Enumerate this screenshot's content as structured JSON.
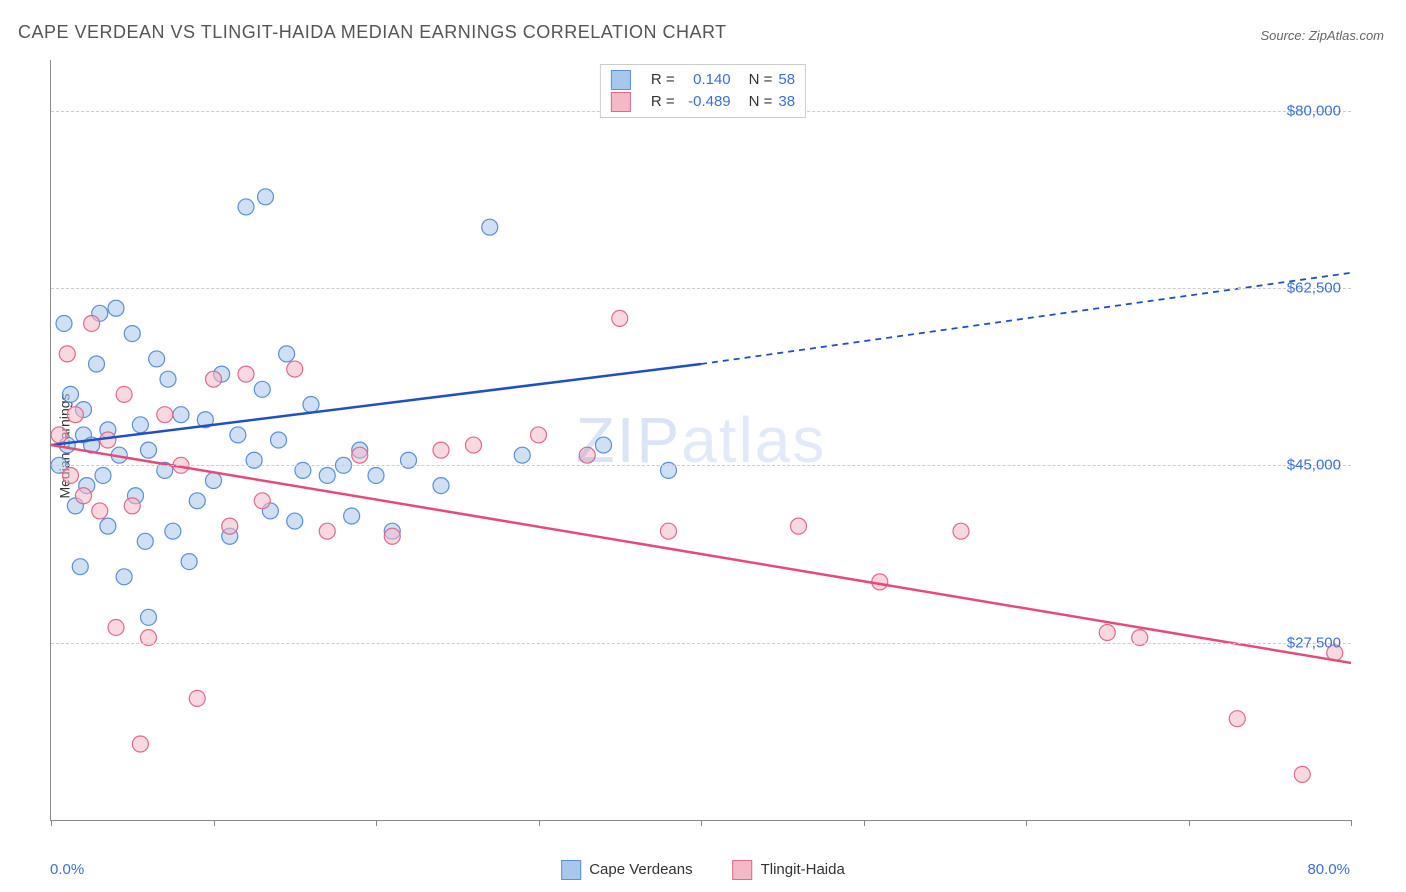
{
  "title": "CAPE VERDEAN VS TLINGIT-HAIDA MEDIAN EARNINGS CORRELATION CHART",
  "source": "Source: ZipAtlas.com",
  "ylabel": "Median Earnings",
  "xmin_label": "0.0%",
  "xmax_label": "80.0%",
  "watermark": "ZIPatlas",
  "chart": {
    "type": "scatter",
    "xlim": [
      0,
      80
    ],
    "ylim": [
      10000,
      85000
    ],
    "yticks": [
      27500,
      45000,
      62500,
      80000
    ],
    "ytick_labels": [
      "$27,500",
      "$45,000",
      "$62,500",
      "$80,000"
    ],
    "xticks": [
      0,
      10,
      20,
      30,
      40,
      50,
      60,
      70,
      80
    ],
    "grid_color": "#cccccc",
    "axis_color": "#888888",
    "background_color": "#ffffff",
    "marker_radius": 8,
    "marker_stroke_width": 1.2,
    "trendline_width": 2.5,
    "series": [
      {
        "name": "Cape Verdeans",
        "fill_color": "#a8c7ec",
        "stroke_color": "#5b8fd6",
        "fill_opacity": 0.55,
        "r_value": "0.140",
        "n_value": "58",
        "trendline": {
          "color": "#1f4fc4",
          "solid_range": [
            0,
            40
          ],
          "dashed_range": [
            40,
            80
          ],
          "y_start": 47000,
          "y_end_solid": 55000,
          "y_end_dashed": 64000
        },
        "points": [
          [
            0.5,
            45000
          ],
          [
            0.8,
            59000
          ],
          [
            1.0,
            47000
          ],
          [
            1.2,
            52000
          ],
          [
            1.5,
            41000
          ],
          [
            1.8,
            35000
          ],
          [
            2.0,
            50500
          ],
          [
            2.0,
            48000
          ],
          [
            2.2,
            43000
          ],
          [
            2.5,
            47000
          ],
          [
            2.8,
            55000
          ],
          [
            3.0,
            60000
          ],
          [
            3.2,
            44000
          ],
          [
            3.5,
            39000
          ],
          [
            3.5,
            48500
          ],
          [
            4.0,
            60500
          ],
          [
            4.2,
            46000
          ],
          [
            4.5,
            34000
          ],
          [
            5.0,
            58000
          ],
          [
            5.2,
            42000
          ],
          [
            5.5,
            49000
          ],
          [
            5.8,
            37500
          ],
          [
            6.0,
            30000
          ],
          [
            6.0,
            46500
          ],
          [
            6.5,
            55500
          ],
          [
            7.0,
            44500
          ],
          [
            7.2,
            53500
          ],
          [
            7.5,
            38500
          ],
          [
            8.0,
            50000
          ],
          [
            8.5,
            35500
          ],
          [
            9.0,
            41500
          ],
          [
            9.5,
            49500
          ],
          [
            10.0,
            43500
          ],
          [
            10.5,
            54000
          ],
          [
            11.0,
            38000
          ],
          [
            11.5,
            48000
          ],
          [
            12.0,
            70500
          ],
          [
            12.5,
            45500
          ],
          [
            13.0,
            52500
          ],
          [
            13.2,
            71500
          ],
          [
            13.5,
            40500
          ],
          [
            14.0,
            47500
          ],
          [
            14.5,
            56000
          ],
          [
            15.0,
            39500
          ],
          [
            15.5,
            44500
          ],
          [
            16.0,
            51000
          ],
          [
            17.0,
            44000
          ],
          [
            18.0,
            45000
          ],
          [
            18.5,
            40000
          ],
          [
            19.0,
            46500
          ],
          [
            20.0,
            44000
          ],
          [
            21.0,
            38500
          ],
          [
            22.0,
            45500
          ],
          [
            24.0,
            43000
          ],
          [
            27.0,
            68500
          ],
          [
            29.0,
            46000
          ],
          [
            34.0,
            47000
          ],
          [
            38.0,
            44500
          ]
        ]
      },
      {
        "name": "Tlingit-Haida",
        "fill_color": "#f4b8c6",
        "stroke_color": "#e06a8a",
        "fill_opacity": 0.55,
        "r_value": "-0.489",
        "n_value": "38",
        "trendline": {
          "color": "#e54b7a",
          "solid_range": [
            0,
            80
          ],
          "y_start": 47000,
          "y_end_solid": 25500
        },
        "points": [
          [
            0.5,
            48000
          ],
          [
            1.0,
            56000
          ],
          [
            1.2,
            44000
          ],
          [
            1.5,
            50000
          ],
          [
            2.0,
            42000
          ],
          [
            2.5,
            59000
          ],
          [
            3.0,
            40500
          ],
          [
            3.5,
            47500
          ],
          [
            4.0,
            29000
          ],
          [
            4.5,
            52000
          ],
          [
            5.0,
            41000
          ],
          [
            5.5,
            17500
          ],
          [
            6.0,
            28000
          ],
          [
            7.0,
            50000
          ],
          [
            8.0,
            45000
          ],
          [
            9.0,
            22000
          ],
          [
            10.0,
            53500
          ],
          [
            11.0,
            39000
          ],
          [
            12.0,
            54000
          ],
          [
            13.0,
            41500
          ],
          [
            15.0,
            54500
          ],
          [
            17.0,
            38500
          ],
          [
            19.0,
            46000
          ],
          [
            21.0,
            38000
          ],
          [
            24.0,
            46500
          ],
          [
            26.0,
            47000
          ],
          [
            30.0,
            48000
          ],
          [
            33.0,
            46000
          ],
          [
            35.0,
            59500
          ],
          [
            38.0,
            38500
          ],
          [
            46.0,
            39000
          ],
          [
            51.0,
            33500
          ],
          [
            56.0,
            38500
          ],
          [
            65.0,
            28500
          ],
          [
            67.0,
            28000
          ],
          [
            73.0,
            20000
          ],
          [
            77.0,
            14500
          ],
          [
            79.0,
            26500
          ]
        ]
      }
    ]
  },
  "legend_bottom": [
    {
      "swatch_fill": "#a8c7ec",
      "swatch_stroke": "#5b8fd6",
      "label": "Cape Verdeans"
    },
    {
      "swatch_fill": "#f4b8c6",
      "swatch_stroke": "#e06a8a",
      "label": "Tlingit-Haida"
    }
  ]
}
